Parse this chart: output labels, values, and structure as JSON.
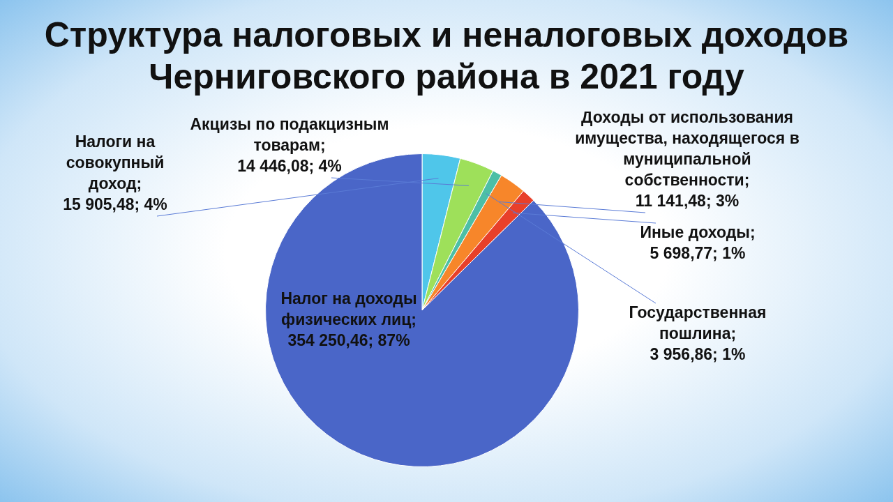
{
  "chart_data": {
    "type": "pie",
    "title": "Структура налоговых и неналоговых доходов Черниговского района в 2021 году",
    "categories": [
      "Налоги на совокупный доход",
      "Акцизы по подакцизным товарам",
      "Государственная пошлина",
      "Доходы от использования имущества, находящегося в муниципальной собственности",
      "Иные доходы",
      "Налог на доходы физических лиц"
    ],
    "values": [
      15905.48,
      14446.08,
      3956.86,
      11141.48,
      5698.77,
      354250.46
    ],
    "colors": [
      "#4fc6ea",
      "#9ee05a",
      "#4cbfa6",
      "#f7862a",
      "#e8402a",
      "#4a66c8"
    ],
    "value_labels": [
      "; 15 905,48; 4%",
      "; 14 446,08; 4%",
      "; 3 956,86; 1%",
      "; 11 141,48; 3%",
      "; 5 698,77; 1%",
      "; 354 250,46; 87%"
    ],
    "legend": false
  }
}
